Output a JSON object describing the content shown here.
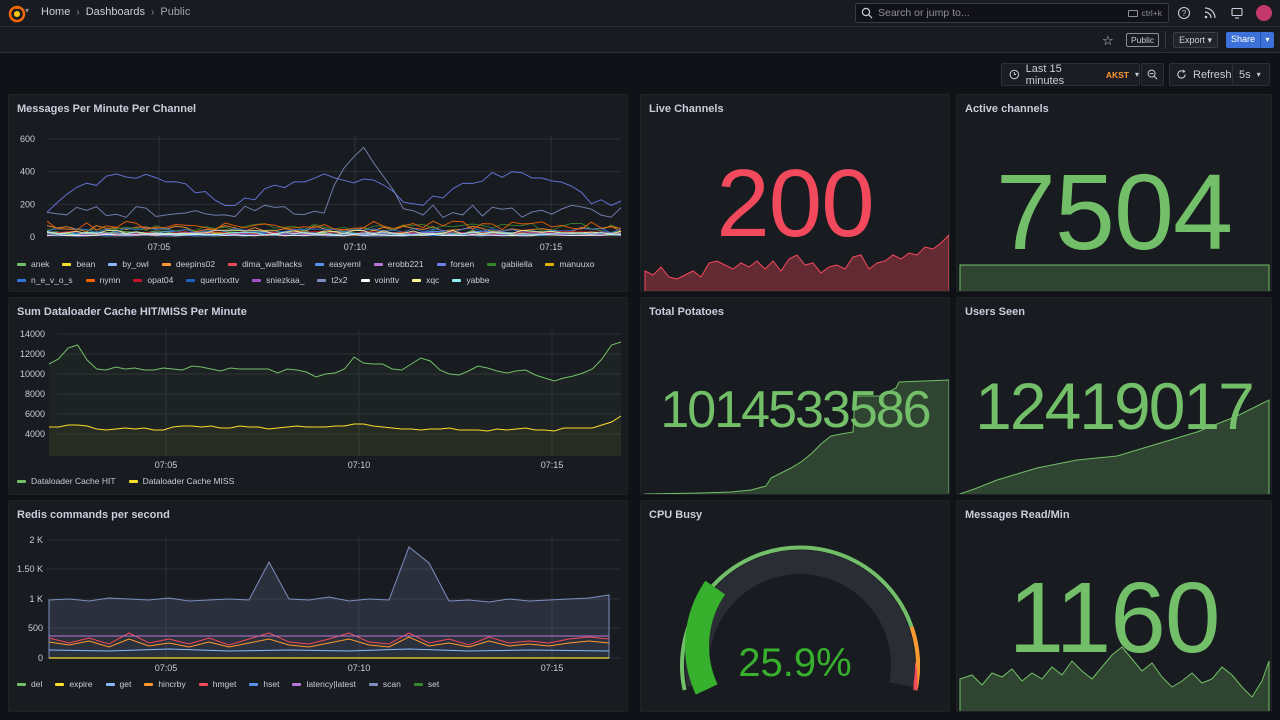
{
  "breadcrumb": {
    "home": "Home",
    "dashboards": "Dashboards",
    "current": "Public"
  },
  "search": {
    "placeholder": "Search or jump to...",
    "shortcut": "ctrl+k"
  },
  "toolbar": {
    "public_badge": "Public",
    "export_label": "Export",
    "share_label": "Share"
  },
  "time_controls": {
    "range": "Last 15 minutes",
    "timezone": "AKST",
    "refresh_label": "Refresh",
    "interval": "5s"
  },
  "colors": {
    "green": "#73bf69",
    "red": "#f2495c",
    "yellow": "#fade2a",
    "orange": "#ff9830"
  },
  "panels": {
    "messages": {
      "title": "Messages Per Minute Per Channel",
      "chart_data": {
        "type": "line",
        "yticks": [
          "600",
          "400",
          "200",
          "0"
        ],
        "xticks": [
          "07:05",
          "07:10",
          "07:15"
        ],
        "ylim": [
          0,
          600
        ],
        "series": [
          {
            "name": "anek",
            "color": "#73bf69"
          },
          {
            "name": "bean",
            "color": "#fade2a"
          },
          {
            "name": "by_owl",
            "color": "#8ab8ff"
          },
          {
            "name": "deepins02",
            "color": "#ff9830"
          },
          {
            "name": "dima_wallhacks",
            "color": "#f2495c"
          },
          {
            "name": "easyeml",
            "color": "#5794f2"
          },
          {
            "name": "erobb221",
            "color": "#b877d9"
          },
          {
            "name": "forsen",
            "color": "#6e7ff0"
          },
          {
            "name": "gabiiella",
            "color": "#37872d"
          },
          {
            "name": "manuuxo",
            "color": "#e0b400"
          },
          {
            "name": "n_e_v_o_s",
            "color": "#3274d9"
          },
          {
            "name": "nymn",
            "color": "#fa6400"
          },
          {
            "name": "opat04",
            "color": "#c4162a"
          },
          {
            "name": "quertixxttv",
            "color": "#1f60c4"
          },
          {
            "name": "sniezkaa_",
            "color": "#a352cc"
          },
          {
            "name": "t2x2",
            "color": "#7e8ec0"
          },
          {
            "name": "vointtv",
            "color": "#ffffff"
          },
          {
            "name": "xqc",
            "color": "#fff899"
          },
          {
            "name": "yabbe",
            "color": "#8ef0f0"
          }
        ]
      }
    },
    "dataloader": {
      "title": "Sum Dataloader Cache HIT/MISS Per Minute",
      "chart_data": {
        "type": "line",
        "yticks": [
          "14000",
          "12000",
          "10000",
          "8000",
          "6000",
          "4000"
        ],
        "xticks": [
          "07:05",
          "07:10",
          "07:15"
        ],
        "ylim": [
          3000,
          14000
        ],
        "series": [
          {
            "name": "Dataloader Cache HIT",
            "color": "#73bf69",
            "values": [
              11000,
              11500,
              12600,
              12900,
              11400,
              10500,
              10400,
              10700,
              10500,
              10600,
              10400,
              10400,
              10600,
              10500,
              10400,
              10800,
              10700,
              10500,
              10300,
              10600,
              10500,
              10500,
              10500,
              10500,
              10100,
              10500,
              10400,
              10200,
              9700,
              10000,
              10100,
              10500,
              11700,
              11100,
              11000,
              11000,
              10500,
              10400,
              11000,
              11600,
              11300,
              10400,
              10000,
              9900,
              10300,
              10800,
              10600,
              10300,
              10100,
              10300,
              10400,
              9900,
              9600,
              9300,
              9600,
              9800,
              10100,
              10500,
              11500,
              12900,
              13200
            ]
          },
          {
            "name": "Dataloader Cache MISS",
            "color": "#fade2a",
            "values": [
              4700,
              4700,
              4900,
              4900,
              4800,
              4500,
              4400,
              4500,
              4600,
              4500,
              4600,
              4400,
              4400,
              4700,
              4800,
              4800,
              4700,
              4800,
              4600,
              4600,
              4800,
              4700,
              4700,
              4500,
              4600,
              4700,
              4800,
              4700,
              4700,
              4700,
              4800,
              4800,
              5000,
              5000,
              4800,
              4700,
              4600,
              4500,
              4500,
              4400,
              4500,
              4500,
              4600,
              4400,
              4400,
              4400,
              4300,
              4500,
              4400,
              4500,
              4600,
              4400,
              4400,
              4300,
              4600,
              4600,
              4600,
              4600,
              4900,
              5200,
              5800
            ]
          }
        ]
      }
    },
    "redis": {
      "title": "Redis commands per second",
      "chart_data": {
        "type": "line",
        "yticks": [
          "2 K",
          "1.50 K",
          "1 K",
          "500",
          "0"
        ],
        "xticks": [
          "07:05",
          "07:10",
          "07:15"
        ],
        "ylim": [
          0,
          2000
        ],
        "series": [
          {
            "name": "del",
            "color": "#73bf69"
          },
          {
            "name": "expire",
            "color": "#fade2a"
          },
          {
            "name": "get",
            "color": "#8ab8ff"
          },
          {
            "name": "hincrby",
            "color": "#ff9830"
          },
          {
            "name": "hmget",
            "color": "#f2495c"
          },
          {
            "name": "hset",
            "color": "#5794f2"
          },
          {
            "name": "latency|latest",
            "color": "#b877d9"
          },
          {
            "name": "scan",
            "color": "#7e8ec0"
          },
          {
            "name": "set",
            "color": "#37872d"
          }
        ]
      }
    },
    "live_channels": {
      "title": "Live Channels",
      "value": "200"
    },
    "active_channels": {
      "title": "Active channels",
      "value": "7504"
    },
    "total_potatoes": {
      "title": "Total Potatoes",
      "value": "1014533586"
    },
    "users_seen": {
      "title": "Users Seen",
      "value": "12419017"
    },
    "cpu_busy": {
      "title": "CPU Busy",
      "value": "25.9%",
      "percent": 25.9
    },
    "messages_read": {
      "title": "Messages Read/Min",
      "value": "1160"
    }
  }
}
